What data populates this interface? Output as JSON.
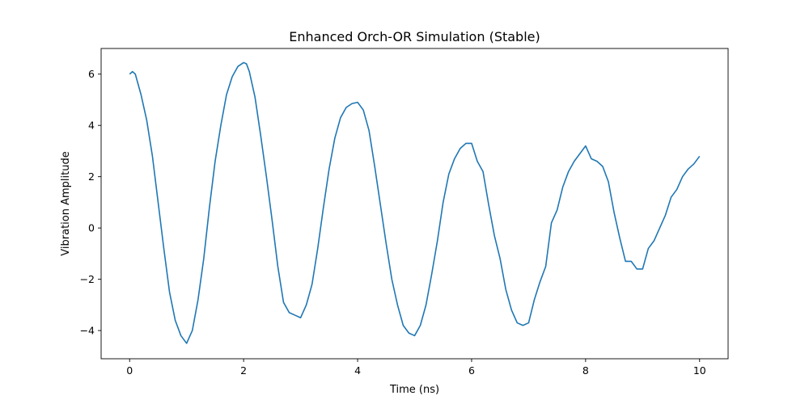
{
  "chart_data": {
    "type": "line",
    "title": "Enhanced Orch-OR Simulation (Stable)",
    "xlabel": "Time (ns)",
    "ylabel": "Vibration Amplitude",
    "xlim": [
      -0.5,
      10.5
    ],
    "ylim": [
      -5.1,
      7.0
    ],
    "xticks": [
      0,
      2,
      4,
      6,
      8,
      10
    ],
    "yticks": [
      -4,
      -2,
      0,
      2,
      4,
      6
    ],
    "xtick_labels": [
      "0",
      "2",
      "4",
      "6",
      "8",
      "10"
    ],
    "ytick_labels": [
      "−4",
      "−2",
      "0",
      "2",
      "4",
      "6"
    ],
    "grid": false,
    "series": [
      {
        "color": "#1f77b4",
        "x": [
          0.0,
          0.05,
          0.1,
          0.2,
          0.3,
          0.4,
          0.5,
          0.6,
          0.7,
          0.8,
          0.9,
          1.0,
          1.1,
          1.2,
          1.3,
          1.4,
          1.5,
          1.6,
          1.7,
          1.8,
          1.9,
          2.0,
          2.05,
          2.1,
          2.2,
          2.3,
          2.4,
          2.5,
          2.6,
          2.7,
          2.8,
          2.9,
          3.0,
          3.1,
          3.2,
          3.3,
          3.4,
          3.5,
          3.6,
          3.7,
          3.8,
          3.9,
          4.0,
          4.1,
          4.2,
          4.3,
          4.4,
          4.5,
          4.6,
          4.7,
          4.8,
          4.9,
          5.0,
          5.1,
          5.2,
          5.3,
          5.4,
          5.5,
          5.6,
          5.7,
          5.8,
          5.9,
          6.0,
          6.1,
          6.2,
          6.3,
          6.4,
          6.5,
          6.6,
          6.7,
          6.8,
          6.9,
          7.0,
          7.1,
          7.2,
          7.3,
          7.4,
          7.5,
          7.6,
          7.7,
          7.8,
          7.9,
          8.0,
          8.1,
          8.2,
          8.3,
          8.4,
          8.5,
          8.6,
          8.7,
          8.8,
          8.9,
          9.0,
          9.1,
          9.2,
          9.3,
          9.4,
          9.5,
          9.6,
          9.7,
          9.8,
          9.9,
          10.0
        ],
        "y": [
          6.0,
          6.1,
          6.0,
          5.2,
          4.2,
          2.8,
          1.0,
          -0.8,
          -2.5,
          -3.6,
          -4.2,
          -4.5,
          -4.0,
          -2.8,
          -1.2,
          0.8,
          2.6,
          4.0,
          5.2,
          5.9,
          6.3,
          6.45,
          6.4,
          6.1,
          5.1,
          3.6,
          2.0,
          0.3,
          -1.5,
          -2.9,
          -3.3,
          -3.4,
          -3.5,
          -3.0,
          -2.2,
          -0.8,
          0.8,
          2.3,
          3.5,
          4.3,
          4.7,
          4.85,
          4.9,
          4.6,
          3.8,
          2.4,
          0.9,
          -0.6,
          -2.0,
          -3.0,
          -3.8,
          -4.1,
          -4.2,
          -3.8,
          -3.0,
          -1.8,
          -0.5,
          1.0,
          2.1,
          2.7,
          3.1,
          3.3,
          3.3,
          2.6,
          2.2,
          0.9,
          -0.3,
          -1.2,
          -2.4,
          -3.2,
          -3.7,
          -3.8,
          -3.7,
          -2.8,
          -2.1,
          -1.5,
          0.2,
          0.7,
          1.6,
          2.2,
          2.6,
          2.9,
          3.2,
          2.7,
          2.6,
          2.4,
          1.8,
          0.6,
          -0.4,
          -1.3,
          -1.3,
          -1.6,
          -1.6,
          -0.8,
          -0.5,
          0.0,
          0.5,
          1.2,
          1.5,
          2.0,
          2.3,
          2.5,
          2.8
        ]
      }
    ]
  }
}
